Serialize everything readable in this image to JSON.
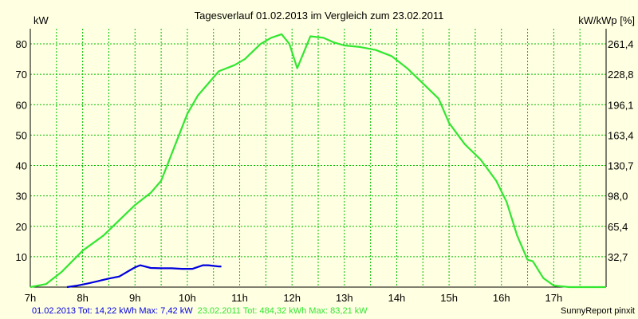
{
  "colors": {
    "background": "#ffffe1",
    "grid": "#00c000",
    "axis": "#000000",
    "series_2013": "#0000e0",
    "series_2011": "#32e632",
    "footer_right_text": "#000000"
  },
  "chart_data": {
    "type": "line",
    "title": "Tagesverlauf 01.02.2013 im Vergleich zum 23.02.2011",
    "ylabel_left": "kW",
    "ylabel_right": "kW/kWp [%]",
    "xlim": [
      7,
      18
    ],
    "ylim_left": [
      0,
      85
    ],
    "x_ticks": [
      7,
      8,
      9,
      10,
      11,
      12,
      13,
      14,
      15,
      16,
      17
    ],
    "x_tick_labels": [
      "7h",
      "8h",
      "9h",
      "10h",
      "11h",
      "12h",
      "13h",
      "14h",
      "15h",
      "16h",
      "17h"
    ],
    "y_ticks_left": [
      10,
      20,
      30,
      40,
      50,
      60,
      70,
      80
    ],
    "y_tick_labels_left": [
      "10",
      "20",
      "30",
      "40",
      "50",
      "60",
      "70",
      "80"
    ],
    "y_tick_labels_right": [
      "32,7",
      "65,4",
      "98,0",
      "130,7",
      "163,4",
      "196,1",
      "228,8",
      "261,4"
    ],
    "grid": true,
    "series": [
      {
        "name": "01.02.2013",
        "x": [
          7.7,
          7.9,
          8.1,
          8.3,
          8.5,
          8.7,
          8.9,
          9.0,
          9.1,
          9.3,
          9.5,
          9.7,
          9.9,
          10.1,
          10.3,
          10.4,
          10.6,
          10.65
        ],
        "values": [
          0,
          0.5,
          1.2,
          2.0,
          2.8,
          3.5,
          5.5,
          6.5,
          7.2,
          6.3,
          6.2,
          6.2,
          6.0,
          6.0,
          7.2,
          7.2,
          6.8,
          6.8
        ]
      },
      {
        "name": "23.02.2011",
        "x": [
          7.0,
          7.3,
          7.6,
          8.0,
          8.4,
          8.7,
          9.0,
          9.3,
          9.5,
          9.75,
          10.0,
          10.2,
          10.4,
          10.6,
          10.9,
          11.1,
          11.4,
          11.6,
          11.8,
          11.95,
          12.1,
          12.35,
          12.6,
          12.8,
          13.0,
          13.3,
          13.6,
          13.9,
          14.2,
          14.5,
          14.8,
          15.0,
          15.3,
          15.6,
          15.9,
          16.1,
          16.3,
          16.5,
          16.6,
          16.8,
          17.0,
          17.3,
          17.6,
          18.0
        ],
        "values": [
          0,
          1.0,
          5.0,
          12,
          17,
          22,
          27,
          31,
          35,
          46,
          57,
          63,
          67,
          71,
          73,
          75,
          80,
          82,
          83.2,
          80,
          72,
          82.5,
          82,
          80.5,
          79.5,
          79,
          78,
          76,
          72,
          67,
          62,
          54,
          47,
          42,
          35,
          28,
          17,
          9,
          8.5,
          3,
          0.5,
          0,
          0,
          0
        ]
      }
    ],
    "legend": {
      "placement": "bottom-left",
      "series_2013_text": "01.02.2013 Tot: 14,22 kWh Max: 7,42 kW",
      "series_2011_text": "23.02.2011 Tot: 484,32 kWh Max: 83,21 kW"
    },
    "footer_right": "SunnyReport pinxit"
  }
}
